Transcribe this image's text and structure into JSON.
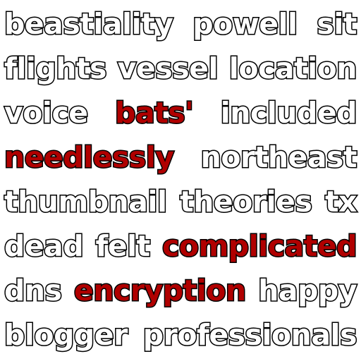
{
  "colors": {
    "background": "#ffffff",
    "text_fill": "#ffffff",
    "text_outline": "#000000",
    "highlight_fill": "#b00000"
  },
  "lines": [
    {
      "words": [
        {
          "text": "beastiality",
          "style": "white"
        },
        {
          "text": "powell",
          "style": "white"
        },
        {
          "text": "sit",
          "style": "white"
        }
      ]
    },
    {
      "words": [
        {
          "text": "flights",
          "style": "white"
        },
        {
          "text": "vessel",
          "style": "white"
        },
        {
          "text": "location",
          "style": "white"
        }
      ]
    },
    {
      "words": [
        {
          "text": "voice",
          "style": "white"
        },
        {
          "text": "bats'",
          "style": "red"
        },
        {
          "text": "included",
          "style": "white"
        }
      ]
    },
    {
      "words": [
        {
          "text": "needlessly",
          "style": "red"
        },
        {
          "text": "northeast",
          "style": "white"
        }
      ]
    },
    {
      "words": [
        {
          "text": "thumbnail",
          "style": "white"
        },
        {
          "text": "theories",
          "style": "white"
        },
        {
          "text": "tx",
          "style": "white"
        }
      ]
    },
    {
      "words": [
        {
          "text": "dead",
          "style": "white"
        },
        {
          "text": "felt",
          "style": "white"
        },
        {
          "text": "complicated",
          "style": "red"
        }
      ]
    },
    {
      "words": [
        {
          "text": "dns",
          "style": "white"
        },
        {
          "text": "encryption",
          "style": "red"
        },
        {
          "text": "happy",
          "style": "white"
        }
      ]
    },
    {
      "words": [
        {
          "text": "blogger",
          "style": "white"
        },
        {
          "text": "professionals",
          "style": "white"
        }
      ]
    }
  ]
}
